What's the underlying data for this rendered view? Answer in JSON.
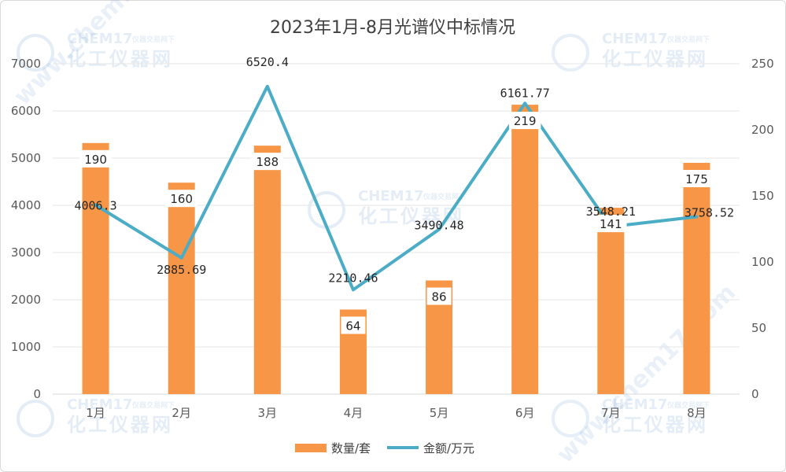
{
  "chart_data": {
    "type": "bar",
    "title": "2023年1月-8月光谱仪中标情况",
    "categories": [
      "1月",
      "2月",
      "3月",
      "4月",
      "5月",
      "6月",
      "7月",
      "8月"
    ],
    "series": [
      {
        "name": "数量/套",
        "type": "bar",
        "axis": "right",
        "values": [
          190,
          160,
          188,
          64,
          86,
          219,
          141,
          175
        ],
        "color": "#f79646"
      },
      {
        "name": "金额/万元",
        "type": "line",
        "axis": "left",
        "values": [
          4006.3,
          2885.69,
          6520.4,
          2210.46,
          3490.48,
          6161.77,
          3548.21,
          3758.52
        ],
        "color": "#4bacc6"
      }
    ],
    "amount_labels": [
      "4006.3",
      "2885.69",
      "6520.4",
      "2210.46",
      "3490.48",
      "6161.77",
      "3548.21",
      "3758.52"
    ],
    "left_axis": {
      "min": 0,
      "max": 7000,
      "ticks": [
        "0",
        "1000",
        "2000",
        "3000",
        "4000",
        "5000",
        "6000",
        "7000"
      ]
    },
    "right_axis": {
      "min": 0,
      "max": 250,
      "ticks": [
        "0",
        "50",
        "100",
        "150",
        "200",
        "250"
      ]
    },
    "legend_position": "bottom",
    "grid": true
  },
  "watermark": {
    "brand": "CHEM17",
    "cn": "化工仪器网",
    "tagline": "仪器交易网下",
    "url": "www.chem17.com"
  }
}
